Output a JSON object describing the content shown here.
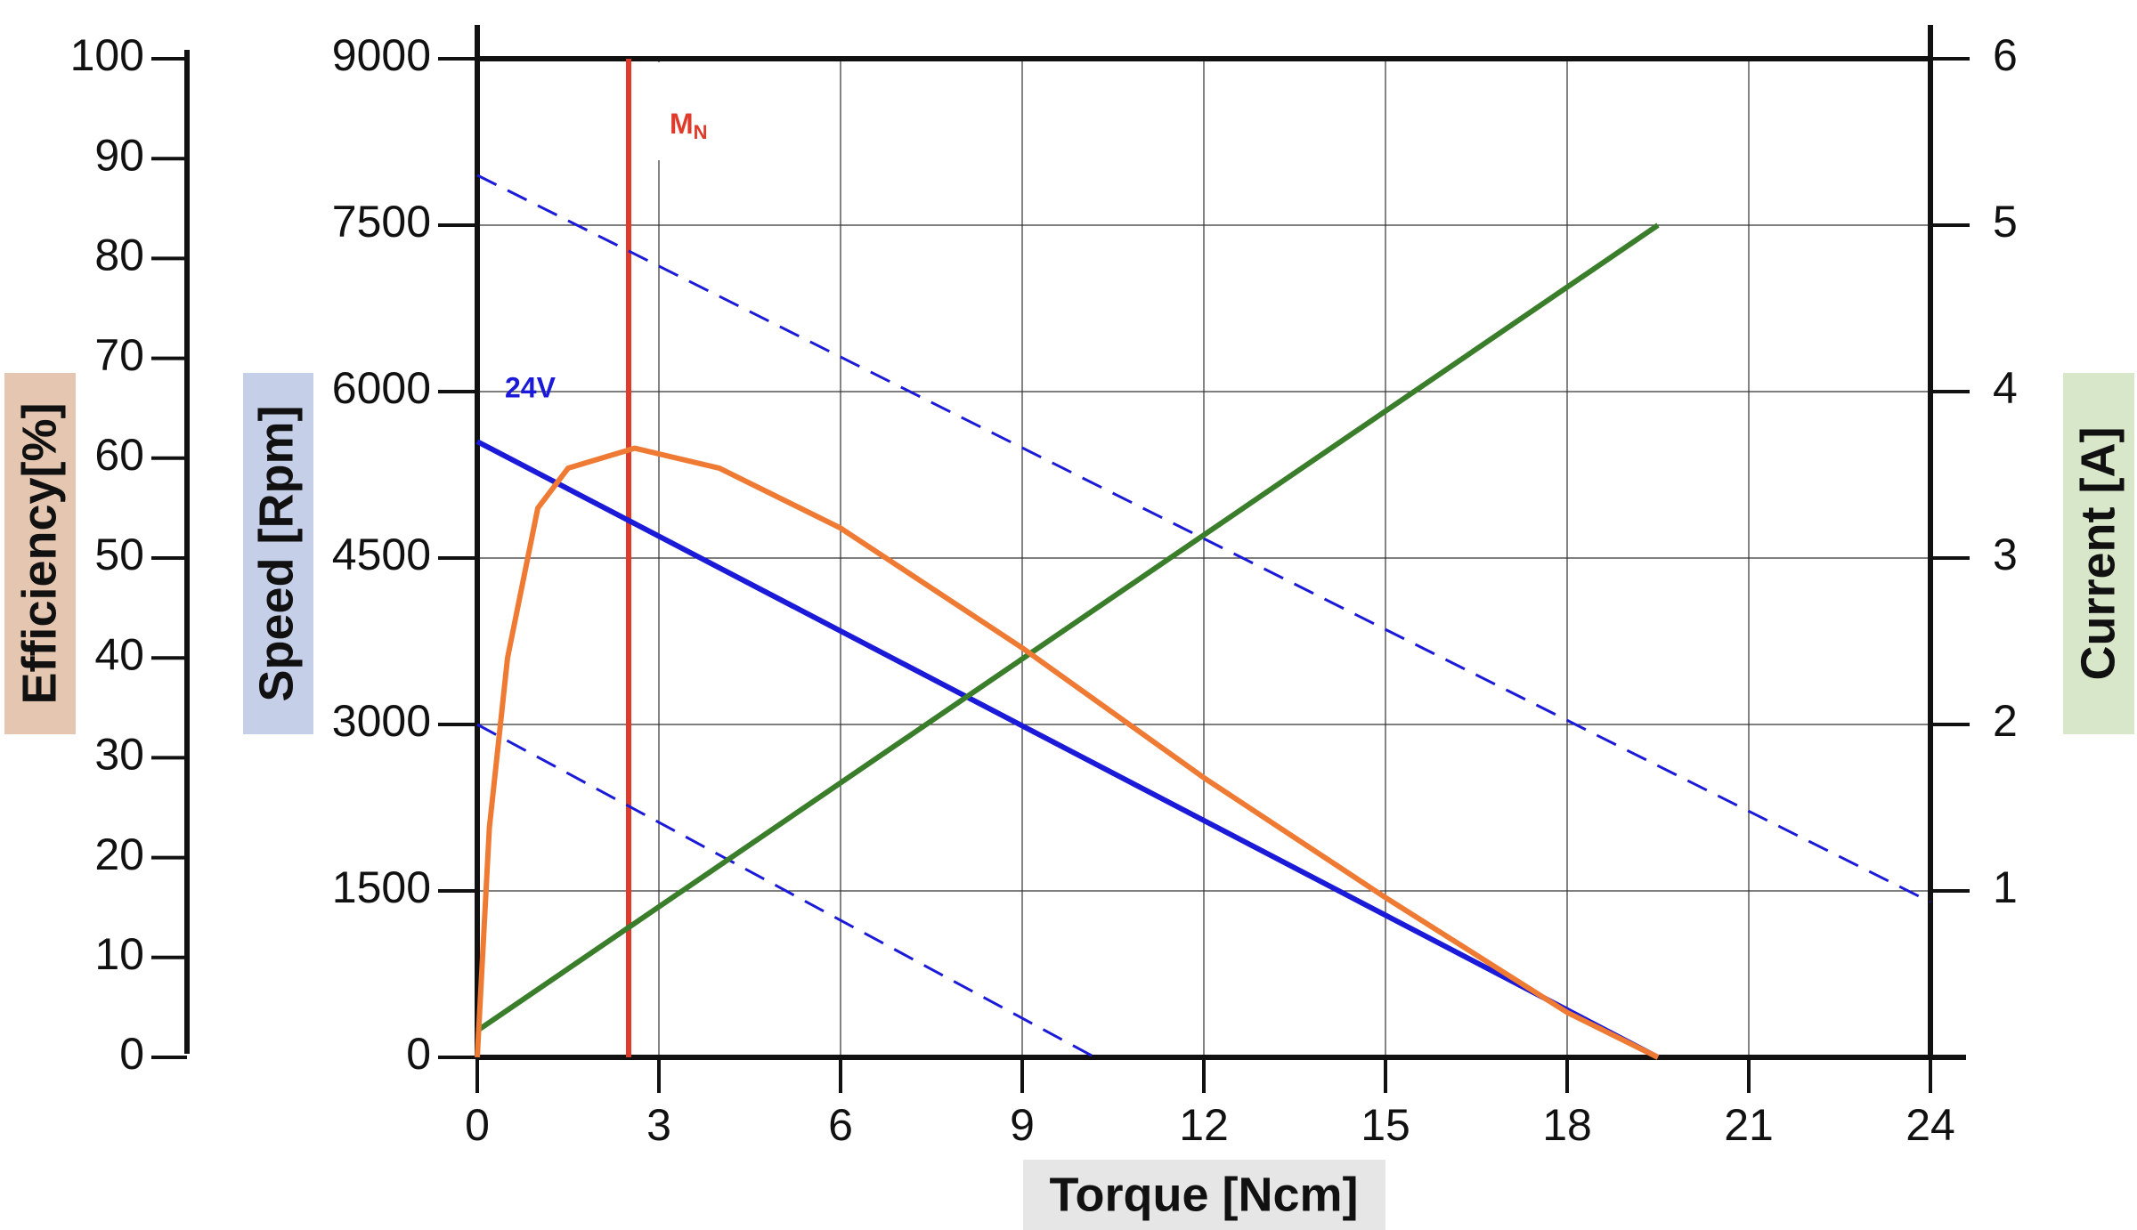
{
  "chart_data": {
    "type": "line",
    "xlabel": "Torque [Ncm]",
    "ylabel": "Speed [Rpm]",
    "y2label": "Current [A]",
    "y3label": "Efficiency[%]",
    "xlim": [
      0,
      24
    ],
    "xticks": [
      0,
      3,
      6,
      9,
      12,
      15,
      18,
      21,
      24
    ],
    "ylim": [
      0,
      9000
    ],
    "yticks": [
      0,
      1500,
      3000,
      4500,
      6000,
      7500,
      9000
    ],
    "y2lim": [
      0,
      6
    ],
    "y2ticks": [
      1,
      2,
      3,
      4,
      5,
      6
    ],
    "y3lim": [
      0,
      100
    ],
    "y3ticks": [
      0,
      10,
      20,
      30,
      40,
      50,
      60,
      70,
      80,
      90,
      100
    ],
    "grid": true,
    "series": [
      {
        "name": "24V",
        "color": "#1a1ad8",
        "axis": "y",
        "dash": false,
        "x": [
          0,
          19.5
        ],
        "values": [
          5550,
          0
        ]
      },
      {
        "color": "#1a1ad8",
        "axis": "y",
        "dash": true,
        "x": [
          0,
          24
        ],
        "values": [
          7950,
          1400
        ]
      },
      {
        "color": "#1a1ad8",
        "axis": "y",
        "dash": true,
        "x": [
          0,
          10.2
        ],
        "values": [
          3000,
          0
        ]
      },
      {
        "color": "#3a7d2a",
        "axis": "y2",
        "dash": false,
        "x": [
          0,
          19.5
        ],
        "values": [
          0.16,
          5
        ]
      },
      {
        "color": "#ef7a34",
        "axis": "y3",
        "dash": false,
        "x": [
          0,
          0.2,
          0.5,
          1,
          1.5,
          2.6,
          4,
          6,
          9,
          12,
          15,
          18,
          19.5
        ],
        "values": [
          0,
          23,
          40,
          55,
          59,
          61,
          59,
          53,
          41,
          28,
          16,
          4.5,
          0
        ]
      }
    ],
    "vline": {
      "x": 2.5,
      "label": "M",
      "subscript": "N",
      "color": "#e03a2a"
    }
  }
}
